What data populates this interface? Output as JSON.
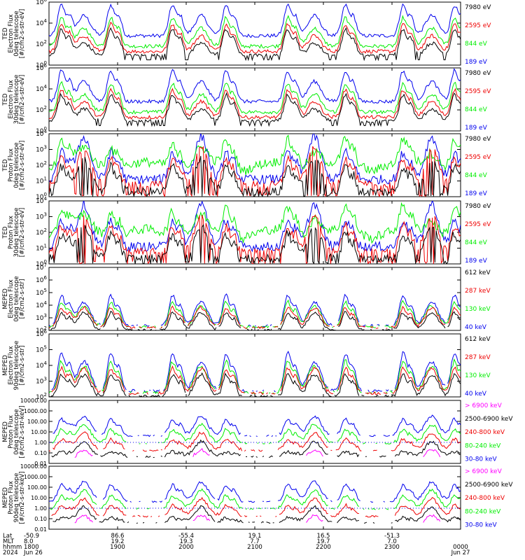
{
  "colors": {
    "black": "#000000",
    "red": "#ee0000",
    "green": "#00ee00",
    "blue": "#0000ee",
    "magenta": "#ff00ff",
    "dotted": "#0000ee"
  },
  "time_axis": {
    "row_labels": [
      "Lat",
      "MLT",
      "hhmm",
      "2024"
    ],
    "columns": [
      {
        "time": "1800",
        "lat": "-50.9",
        "mlt": "8.0",
        "hhmm": "1800",
        "date": "Jun 26"
      },
      {
        "time": "1900",
        "lat": "86.6",
        "mlt": "19.2",
        "hhmm": "1900",
        "date": ""
      },
      {
        "time": "2000",
        "lat": "-55.4",
        "mlt": "19.3",
        "hhmm": "2000",
        "date": ""
      },
      {
        "time": "2100",
        "lat": "19.1",
        "mlt": "7.7",
        "hhmm": "2100",
        "date": ""
      },
      {
        "time": "2200",
        "lat": "16.5",
        "mlt": "19.7",
        "hhmm": "2200",
        "date": ""
      },
      {
        "time": "2300",
        "lat": "-51.3",
        "mlt": "7.0",
        "hhmm": "2300",
        "date": ""
      },
      {
        "time": "0000",
        "lat": "",
        "mlt": "",
        "hhmm": "0000",
        "date": "Jun 27"
      }
    ]
  },
  "chart_data": [
    {
      "type": "line",
      "log_y": true,
      "ylabel_lines": [
        "TED",
        "Electron Flux",
        "0deg telescope",
        "[#/cm2-s-str-eV]"
      ],
      "y_ticks": [
        "10^0",
        "10^2",
        "10^4",
        "10^6"
      ],
      "ylim_exp": [
        0,
        6
      ],
      "series": [
        {
          "name": "7980 eV",
          "color": "#000000"
        },
        {
          "name": "2595 eV",
          "color": "#ee0000"
        },
        {
          "name": "844 eV",
          "color": "#00ee00"
        },
        {
          "name": "189 eV",
          "color": "#0000ee"
        }
      ]
    },
    {
      "type": "line",
      "log_y": true,
      "ylabel_lines": [
        "TED",
        "Electron Flux",
        "30deg telescope",
        "[#/cm2-s-str-eV]"
      ],
      "y_ticks": [
        "10^0",
        "10^2",
        "10^4",
        "10^6"
      ],
      "ylim_exp": [
        0,
        6
      ],
      "series": [
        {
          "name": "7980 eV",
          "color": "#000000"
        },
        {
          "name": "2595 eV",
          "color": "#ee0000"
        },
        {
          "name": "844 eV",
          "color": "#00ee00"
        },
        {
          "name": "189 eV",
          "color": "#0000ee"
        }
      ]
    },
    {
      "type": "line",
      "log_y": true,
      "ylabel_lines": [
        "TED",
        "Proton Flux",
        "0deg telescope",
        "[#/cm2-s-str-eV]"
      ],
      "y_ticks": [
        "10^0",
        "10^1",
        "10^2",
        "10^3",
        "10^4"
      ],
      "ylim_exp": [
        0,
        4
      ],
      "series": [
        {
          "name": "7980 eV",
          "color": "#000000"
        },
        {
          "name": "2595 eV",
          "color": "#ee0000"
        },
        {
          "name": "844 eV",
          "color": "#00ee00"
        },
        {
          "name": "189 eV",
          "color": "#0000ee"
        }
      ]
    },
    {
      "type": "line",
      "log_y": true,
      "ylabel_lines": [
        "TED",
        "Proton Flux",
        "30deg telescope",
        "[#/cm2-s-str-eV]"
      ],
      "y_ticks": [
        "10^0",
        "10^1",
        "10^2",
        "10^3",
        "10^4"
      ],
      "ylim_exp": [
        0,
        4
      ],
      "series": [
        {
          "name": "7980 eV",
          "color": "#000000"
        },
        {
          "name": "2595 eV",
          "color": "#ee0000"
        },
        {
          "name": "844 eV",
          "color": "#00ee00"
        },
        {
          "name": "189 eV",
          "color": "#0000ee"
        }
      ]
    },
    {
      "type": "line",
      "log_y": true,
      "ylabel_lines": [
        "MEPED",
        "Electron Flux",
        "0deg telescope",
        "[#/cm2-s-str]"
      ],
      "y_ticks": [
        "10^2",
        "10^3",
        "10^4",
        "10^5",
        "10^6",
        "10^7"
      ],
      "ylim_exp": [
        2,
        7
      ],
      "series": [
        {
          "name": "612 keV",
          "color": "#000000"
        },
        {
          "name": "287 keV",
          "color": "#ee0000"
        },
        {
          "name": "130 keV",
          "color": "#00ee00"
        },
        {
          "name": "40 keV",
          "color": "#0000ee"
        }
      ]
    },
    {
      "type": "line",
      "log_y": true,
      "ylabel_lines": [
        "MEPED",
        "Electron Flux",
        "90deg telescope",
        "[#/cm2-s-str]"
      ],
      "y_ticks": [
        "10^2",
        "10^3",
        "10^4",
        "10^5",
        "10^6"
      ],
      "ylim_exp": [
        2,
        6
      ],
      "series": [
        {
          "name": "612 keV",
          "color": "#000000"
        },
        {
          "name": "287 keV",
          "color": "#ee0000"
        },
        {
          "name": "130 keV",
          "color": "#00ee00"
        },
        {
          "name": "40 keV",
          "color": "#0000ee"
        }
      ]
    },
    {
      "type": "line",
      "log_y": true,
      "ylabel_lines": [
        "MEPED",
        "Proton Flux",
        "0deg telescope",
        "[#/cm2-s-str-keV]"
      ],
      "y_ticks": [
        "0.01",
        "0.10",
        "1.00",
        "10.00",
        "100.00",
        "1000.00",
        "10000.00"
      ],
      "ylim_exp": [
        -2,
        4
      ],
      "series": [
        {
          "name": "> 6900 keV",
          "color": "#ff00ff"
        },
        {
          "name": "2500-6900 keV",
          "color": "#000000"
        },
        {
          "name": "240-800 keV",
          "color": "#ee0000"
        },
        {
          "name": "80-240 keV",
          "color": "#00ee00"
        },
        {
          "name": "30-80 keV",
          "color": "#0000ee"
        }
      ]
    },
    {
      "type": "line",
      "log_y": true,
      "ylabel_lines": [
        "MEPED",
        "Proton Flux",
        "90deg telescope",
        "[#/cm2-s-str-keV]"
      ],
      "y_ticks": [
        "0.01",
        "0.10",
        "1.00",
        "10.00",
        "100.00",
        "1000.00",
        "10000.00"
      ],
      "ylim_exp": [
        -2,
        4
      ],
      "series": [
        {
          "name": "> 6900 keV",
          "color": "#ff00ff"
        },
        {
          "name": "2500-6900 keV",
          "color": "#000000"
        },
        {
          "name": "240-800 keV",
          "color": "#ee0000"
        },
        {
          "name": "80-240 keV",
          "color": "#00ee00"
        },
        {
          "name": "30-80 keV",
          "color": "#0000ee"
        }
      ]
    }
  ]
}
